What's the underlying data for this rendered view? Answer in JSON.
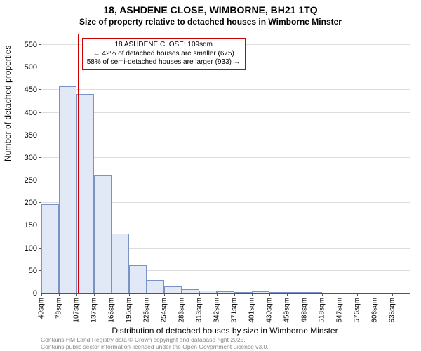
{
  "chart": {
    "type": "histogram",
    "title": "18, ASHDENE CLOSE, WIMBORNE, BH21 1TQ",
    "subtitle": "Size of property relative to detached houses in Wimborne Minster",
    "ylabel": "Number of detached properties",
    "xlabel": "Distribution of detached houses by size in Wimborne Minster",
    "background_color": "#ffffff",
    "grid_color": "#dddddd",
    "axis_color": "#555555",
    "title_fontsize": 14,
    "subtitle_fontsize": 12,
    "label_fontsize": 12,
    "tick_fontsize": 11,
    "ylim": [
      0,
      575
    ],
    "yticks": [
      0,
      50,
      100,
      150,
      200,
      250,
      300,
      350,
      400,
      450,
      500,
      550
    ],
    "xtick_labels": [
      "49sqm",
      "78sqm",
      "107sqm",
      "137sqm",
      "166sqm",
      "195sqm",
      "225sqm",
      "254sqm",
      "283sqm",
      "313sqm",
      "342sqm",
      "371sqm",
      "401sqm",
      "430sqm",
      "459sqm",
      "488sqm",
      "518sqm",
      "547sqm",
      "576sqm",
      "606sqm",
      "635sqm"
    ],
    "bars": [
      198,
      458,
      442,
      262,
      132,
      62,
      30,
      15,
      10,
      6,
      4,
      3,
      5,
      2,
      1,
      1,
      0,
      0,
      0,
      0,
      0
    ],
    "bar_color": "#e2e9f6",
    "bar_border": "#7a93c4",
    "bar_width": 1.0,
    "marker": {
      "position_index": 2.07,
      "color": "#cc0000",
      "height_value": 575
    },
    "annotation": {
      "border_color": "#cc0000",
      "line1": "18 ASHDENE CLOSE: 109sqm",
      "line2": "← 42% of detached houses are smaller (675)",
      "line3": "58% of semi-detached houses are larger (933) →"
    },
    "attribution": {
      "line1": "Contains HM Land Registry data © Crown copyright and database right 2025.",
      "line2": "Contains public sector information licensed under the Open Government Licence v3.0.",
      "color": "#888888",
      "fontsize": 8.5
    }
  }
}
